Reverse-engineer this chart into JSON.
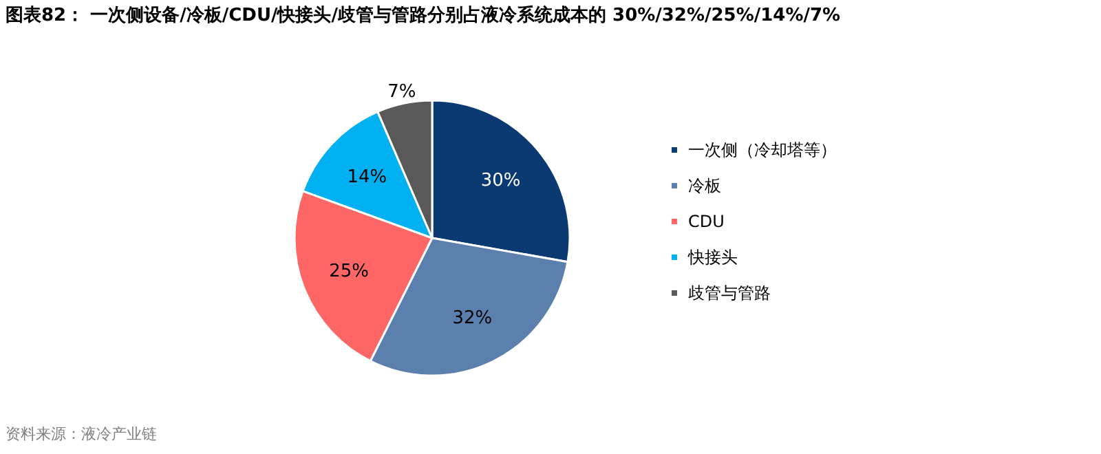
{
  "chart_data": {
    "type": "pie",
    "title": "图表82：  一次侧设备/冷板/CDU/快接头/歧管与管路分别占液冷系统成本的 30%/32%/25%/14%/7%",
    "categories": [
      "一次侧（冷却塔等）",
      "冷板",
      "CDU",
      "快接头",
      "歧管与管路"
    ],
    "values": [
      30,
      32,
      25,
      14,
      7
    ],
    "colors": [
      "#0b3a73",
      "#5b80ad",
      "#ff6666",
      "#00b0f0",
      "#595959"
    ],
    "value_labels": [
      "30%",
      "32%",
      "25%",
      "14%",
      "7%"
    ],
    "legend": "right",
    "annotations": [
      "资料来源：液冷产业链"
    ]
  }
}
